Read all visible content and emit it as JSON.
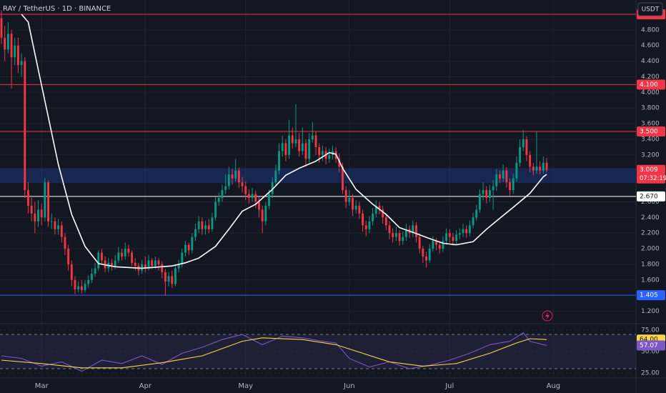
{
  "chart_data": {
    "type": "candlestick",
    "title": "RAY / TetherUS · 1D · BINANCE",
    "currency": "USDT",
    "up_color": "#089981",
    "down_color": "#f23645",
    "grid": true,
    "open": [
      4.95,
      4.7,
      4.55,
      4.75,
      4.45,
      4.6,
      4.35,
      4.4,
      2.75,
      2.55,
      2.45,
      2.35,
      2.5,
      2.4,
      2.85,
      2.35,
      2.35,
      2.25,
      2.3,
      2.15,
      2.0,
      1.8,
      1.6,
      1.48,
      1.52,
      1.47,
      1.55,
      1.6,
      1.68,
      1.75,
      1.95,
      1.85,
      1.75,
      1.82,
      1.78,
      1.85,
      1.95,
      1.9,
      2.0,
      1.95,
      1.82,
      1.78,
      1.72,
      1.8,
      1.75,
      1.85,
      1.78,
      1.85,
      1.8,
      1.7,
      1.58,
      1.65,
      1.55,
      1.75,
      1.8,
      1.95,
      2.05,
      1.98,
      2.15,
      2.25,
      2.35,
      2.25,
      2.3,
      2.25,
      2.4,
      2.6,
      2.65,
      2.75,
      2.8,
      2.95,
      2.9,
      3.0,
      2.85,
      2.8,
      2.7,
      2.65,
      2.7,
      2.6,
      2.5,
      2.35,
      2.55,
      2.7,
      2.85,
      3.0,
      3.25,
      3.35,
      3.2,
      3.45,
      3.35,
      3.4,
      3.25,
      3.35,
      3.15,
      3.4,
      3.45,
      3.3,
      3.2,
      3.25,
      3.15,
      3.2,
      3.25,
      3.15,
      3.05,
      2.75,
      2.6,
      2.65,
      2.5,
      2.55,
      2.45,
      2.3,
      2.25,
      2.35,
      2.45,
      2.55,
      2.5,
      2.4,
      2.3,
      2.2,
      2.15,
      2.2,
      2.1,
      2.15,
      2.25,
      2.2,
      2.3,
      2.15,
      2.0,
      1.9,
      1.85,
      2.0,
      2.1,
      2.05,
      2.0,
      2.1,
      2.2,
      2.15,
      2.1,
      2.18,
      2.2,
      2.25,
      2.2,
      2.3,
      2.4,
      2.5,
      2.7,
      2.75,
      2.65,
      2.75,
      2.8,
      2.95,
      2.9,
      3.0,
      2.85,
      2.75,
      2.9,
      3.1,
      3.3,
      3.4,
      3.2,
      3.05,
      3.0,
      3.05,
      3.0,
      3.1
    ],
    "high": [
      5.05,
      4.85,
      4.9,
      4.8,
      4.7,
      4.7,
      4.5,
      4.45,
      2.85,
      2.65,
      2.6,
      2.62,
      2.58,
      2.9,
      2.88,
      2.45,
      2.4,
      2.38,
      2.35,
      2.2,
      2.05,
      1.85,
      1.65,
      1.58,
      1.6,
      1.6,
      1.66,
      1.75,
      1.82,
      1.98,
      2.0,
      1.9,
      1.88,
      1.87,
      1.92,
      2.02,
      2.0,
      2.08,
      2.05,
      1.98,
      1.88,
      1.82,
      1.86,
      1.9,
      1.92,
      1.88,
      1.9,
      1.88,
      1.84,
      1.74,
      1.7,
      1.72,
      1.8,
      1.86,
      2.0,
      2.1,
      2.08,
      2.2,
      2.32,
      2.42,
      2.4,
      2.36,
      2.38,
      2.46,
      2.66,
      2.72,
      2.82,
      2.95,
      3.05,
      3.02,
      3.15,
      3.04,
      2.92,
      2.86,
      2.76,
      2.78,
      2.74,
      2.66,
      2.55,
      2.6,
      2.76,
      2.92,
      3.08,
      3.35,
      3.45,
      3.4,
      3.65,
      3.55,
      3.85,
      3.48,
      3.55,
      3.4,
      3.48,
      3.62,
      3.5,
      3.35,
      3.32,
      3.3,
      3.28,
      3.32,
      3.3,
      3.22,
      3.1,
      2.8,
      2.75,
      2.7,
      2.62,
      2.6,
      2.5,
      2.36,
      2.42,
      2.52,
      2.62,
      2.6,
      2.55,
      2.45,
      2.35,
      2.26,
      2.28,
      2.24,
      2.22,
      2.32,
      2.3,
      2.36,
      2.34,
      2.2,
      2.04,
      1.96,
      2.06,
      2.16,
      2.14,
      2.1,
      2.16,
      2.26,
      2.25,
      2.2,
      2.24,
      2.26,
      2.32,
      2.3,
      2.36,
      2.46,
      2.56,
      2.76,
      2.85,
      2.8,
      2.82,
      2.88,
      3.02,
      3.0,
      3.08,
      3.04,
      2.9,
      2.96,
      3.18,
      3.4,
      3.52,
      3.44,
      3.25,
      3.1,
      3.5,
      3.12,
      3.18,
      3.16
    ],
    "low": [
      4.62,
      4.4,
      4.5,
      4.05,
      4.35,
      4.25,
      4.2,
      2.65,
      2.45,
      2.35,
      2.2,
      2.28,
      2.3,
      2.35,
      2.28,
      2.25,
      2.18,
      2.18,
      2.08,
      1.92,
      1.72,
      1.52,
      1.42,
      1.44,
      1.43,
      1.44,
      1.5,
      1.56,
      1.64,
      1.72,
      1.8,
      1.7,
      1.7,
      1.72,
      1.74,
      1.82,
      1.85,
      1.86,
      1.9,
      1.78,
      1.72,
      1.66,
      1.68,
      1.7,
      1.72,
      1.74,
      1.74,
      1.72,
      1.62,
      1.4,
      1.52,
      1.5,
      1.52,
      1.7,
      1.76,
      1.9,
      1.92,
      1.94,
      2.1,
      2.2,
      2.18,
      2.18,
      2.2,
      2.22,
      2.36,
      2.55,
      2.6,
      2.7,
      2.76,
      2.82,
      2.86,
      2.78,
      2.72,
      2.62,
      2.58,
      2.6,
      2.52,
      2.4,
      2.2,
      2.3,
      2.5,
      2.65,
      2.8,
      2.95,
      3.18,
      3.12,
      3.15,
      3.28,
      3.3,
      3.18,
      3.2,
      3.05,
      3.1,
      3.36,
      3.2,
      3.1,
      3.12,
      3.08,
      3.1,
      3.14,
      3.1,
      2.98,
      2.7,
      2.52,
      2.55,
      2.42,
      2.45,
      2.38,
      2.22,
      2.16,
      2.2,
      2.3,
      2.4,
      2.44,
      2.32,
      2.24,
      2.12,
      2.08,
      2.1,
      2.04,
      2.05,
      2.1,
      2.14,
      2.15,
      2.08,
      1.94,
      1.82,
      1.76,
      1.82,
      1.96,
      1.98,
      1.94,
      1.96,
      2.05,
      2.08,
      2.04,
      2.06,
      2.12,
      2.15,
      2.14,
      2.16,
      2.26,
      2.36,
      2.46,
      2.62,
      2.58,
      2.6,
      2.5,
      2.74,
      2.84,
      2.86,
      2.78,
      2.68,
      2.7,
      2.86,
      3.05,
      3.25,
      3.12,
      2.98,
      2.94,
      2.96,
      2.95,
      2.96,
      2.98
    ],
    "close": [
      4.7,
      4.55,
      4.75,
      4.45,
      4.6,
      4.35,
      4.4,
      2.75,
      2.55,
      2.45,
      2.35,
      2.5,
      2.4,
      2.85,
      2.35,
      2.35,
      2.25,
      2.3,
      2.15,
      2.0,
      1.8,
      1.6,
      1.48,
      1.52,
      1.47,
      1.55,
      1.6,
      1.68,
      1.75,
      1.95,
      1.85,
      1.75,
      1.82,
      1.78,
      1.85,
      1.95,
      1.9,
      2.0,
      1.95,
      1.82,
      1.78,
      1.72,
      1.8,
      1.75,
      1.85,
      1.78,
      1.85,
      1.8,
      1.7,
      1.58,
      1.65,
      1.55,
      1.75,
      1.8,
      1.95,
      2.05,
      1.98,
      2.15,
      2.25,
      2.35,
      2.25,
      2.3,
      2.25,
      2.4,
      2.6,
      2.65,
      2.75,
      2.8,
      2.95,
      2.9,
      3.0,
      2.85,
      2.8,
      2.7,
      2.65,
      2.7,
      2.6,
      2.5,
      2.35,
      2.55,
      2.7,
      2.85,
      3.0,
      3.25,
      3.35,
      3.2,
      3.45,
      3.35,
      3.4,
      3.25,
      3.35,
      3.15,
      3.4,
      3.45,
      3.3,
      3.2,
      3.25,
      3.15,
      3.2,
      3.25,
      3.15,
      3.05,
      2.75,
      2.6,
      2.65,
      2.5,
      2.55,
      2.45,
      2.3,
      2.25,
      2.35,
      2.45,
      2.55,
      2.5,
      2.4,
      2.3,
      2.2,
      2.15,
      2.2,
      2.1,
      2.15,
      2.25,
      2.2,
      2.3,
      2.15,
      2.0,
      1.9,
      1.85,
      2.0,
      2.1,
      2.05,
      2.0,
      2.1,
      2.2,
      2.15,
      2.1,
      2.18,
      2.2,
      2.25,
      2.2,
      2.3,
      2.4,
      2.5,
      2.7,
      2.75,
      2.65,
      2.75,
      2.8,
      2.95,
      2.9,
      3.0,
      2.85,
      2.75,
      2.9,
      3.1,
      3.3,
      3.4,
      3.2,
      3.05,
      3.0,
      3.05,
      3.0,
      3.1,
      3.009
    ],
    "xlim": [
      -0.43,
      189.7
    ],
    "xticks": [
      {
        "value": 12,
        "label": "Mar"
      },
      {
        "value": 43,
        "label": "Apr"
      },
      {
        "value": 73,
        "label": "May"
      },
      {
        "value": 104,
        "label": "Jun"
      },
      {
        "value": 134,
        "label": "Jul"
      },
      {
        "value": 165,
        "label": "Aug"
      }
    ],
    "ylim": [
      1.05,
      5.0
    ],
    "yticks": [
      {
        "value": 4.8,
        "label": "4.800"
      },
      {
        "value": 4.6,
        "label": "4.600"
      },
      {
        "value": 4.4,
        "label": "4.400"
      },
      {
        "value": 4.2,
        "label": "4.200"
      },
      {
        "value": 4.0,
        "label": "4.000"
      },
      {
        "value": 3.8,
        "label": "3.800"
      },
      {
        "value": 3.6,
        "label": "3.600"
      },
      {
        "value": 3.4,
        "label": "3.400"
      },
      {
        "value": 3.2,
        "label": "3.200"
      },
      {
        "value": 2.6,
        "label": "2.600"
      },
      {
        "value": 2.4,
        "label": "2.400"
      },
      {
        "value": 2.2,
        "label": "2.200"
      },
      {
        "value": 2.0,
        "label": "2.000"
      },
      {
        "value": 1.8,
        "label": "1.800"
      },
      {
        "value": 1.6,
        "label": "1.600"
      },
      {
        "value": 1.2,
        "label": "1.200"
      }
    ],
    "zone": {
      "range": [
        2.84,
        3.03
      ],
      "color": "#2962ff"
    },
    "levels": [
      {
        "value": 5.0,
        "color": "#f23645"
      },
      {
        "value": 4.1,
        "label": "4.100",
        "color": "#f23645"
      },
      {
        "value": 3.5,
        "label": "3.500",
        "color": "#f23645"
      },
      {
        "value": 2.67,
        "label": "2.670",
        "color": "#ffffff"
      },
      {
        "value": 1.405,
        "color": "#2962ff"
      }
    ],
    "overlays": [
      {
        "type": "line",
        "color": "#ffffff",
        "x": [
          6,
          8,
          12,
          17,
          21,
          25,
          29,
          34,
          42,
          51,
          55,
          59,
          64,
          68,
          72,
          76,
          81,
          85,
          89,
          94,
          98,
          100,
          102,
          106,
          111,
          115,
          119,
          123,
          128,
          132,
          136,
          141,
          145,
          149,
          153,
          158,
          162,
          163
        ],
        "values": [
          5.0,
          4.9,
          4.09,
          3.08,
          2.44,
          2.03,
          1.81,
          1.77,
          1.75,
          1.78,
          1.82,
          1.88,
          2.03,
          2.25,
          2.48,
          2.57,
          2.76,
          2.94,
          3.03,
          3.12,
          3.23,
          3.21,
          3.03,
          2.76,
          2.57,
          2.44,
          2.27,
          2.21,
          2.13,
          2.07,
          2.05,
          2.09,
          2.25,
          2.39,
          2.53,
          2.71,
          2.92,
          2.952
        ]
      }
    ],
    "last_price": {
      "value": 3.009,
      "countdown": "07:32:19"
    },
    "indicator": {
      "ylim": [
        20,
        80
      ],
      "yticks": [
        {
          "value": 75,
          "label": "75.00"
        },
        {
          "value": 50,
          "label": "50.00"
        },
        {
          "value": 25,
          "label": "25.00"
        }
      ],
      "band": [
        30,
        70
      ],
      "series": [
        {
          "color": "#7e57c2",
          "x": [
            0,
            6,
            12,
            18,
            24,
            30,
            36,
            42,
            48,
            54,
            60,
            66,
            72,
            78,
            84,
            90,
            96,
            100,
            104,
            110,
            116,
            122,
            128,
            134,
            140,
            146,
            152,
            156,
            158,
            160,
            163
          ],
          "values": [
            45,
            42,
            33,
            38,
            27,
            40,
            36,
            45,
            35,
            48,
            55,
            64,
            70,
            58,
            68,
            66,
            62,
            60,
            42,
            32,
            38,
            30,
            34,
            40,
            48,
            58,
            62,
            72,
            62,
            60,
            57.07
          ]
        },
        {
          "color": "#f7d64a",
          "x": [
            0,
            12,
            24,
            36,
            48,
            60,
            72,
            78,
            90,
            100,
            108,
            116,
            126,
            136,
            146,
            154,
            158,
            163
          ],
          "values": [
            40,
            36,
            31,
            31,
            37,
            45,
            62,
            66,
            64,
            58,
            48,
            38,
            33,
            36,
            48,
            60,
            65,
            64
          ],
          "last_label": "64.00"
        }
      ]
    }
  }
}
